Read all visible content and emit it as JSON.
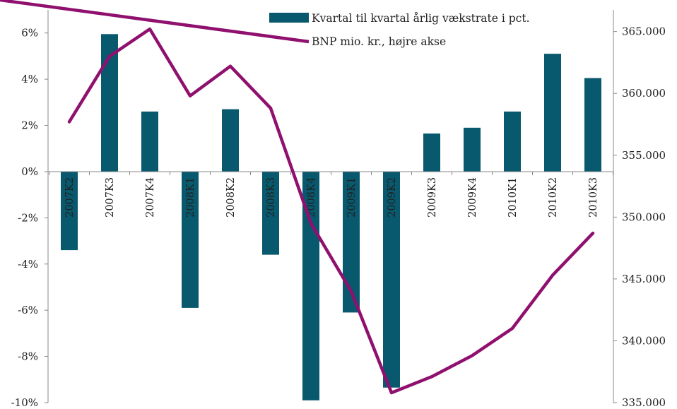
{
  "chart_data": {
    "type": "bar",
    "title": "",
    "categories": [
      "2007K2",
      "2007K3",
      "2007K4",
      "2008K1",
      "2008K2",
      "2008K3",
      "2008K4",
      "2009K1",
      "2009K2",
      "2009K3",
      "2009K4",
      "2010K1",
      "2010K2",
      "2010K3"
    ],
    "series": [
      {
        "name": "Kvartal til kvartal årlig vækstrate i pct.",
        "type": "bar",
        "axis": "left",
        "color": "#08586e",
        "values": [
          -3.4,
          5.95,
          2.6,
          -5.9,
          2.7,
          -3.6,
          -9.9,
          -6.1,
          -9.35,
          1.65,
          1.9,
          2.6,
          5.1,
          4.05
        ]
      },
      {
        "name": "BNP mio. kr., højre akse",
        "type": "line",
        "axis": "right",
        "color": "#8f106e",
        "values": [
          357700,
          363000,
          365200,
          359800,
          362200,
          358800,
          349500,
          344000,
          335800,
          337100,
          338800,
          341000,
          345300,
          348700
        ]
      }
    ],
    "y_left": {
      "min": -10,
      "max": 7,
      "ticks": [
        -10,
        -8,
        -6,
        -4,
        -2,
        0,
        2,
        4,
        6
      ],
      "tick_labels": [
        "-10%",
        "-8%",
        "-6%",
        "-4%",
        "-2%",
        "0%",
        "2%",
        "4%",
        "6%"
      ]
    },
    "y_right": {
      "min": 335000,
      "max": 366750,
      "ticks": [
        335000,
        340000,
        345000,
        350000,
        355000,
        360000,
        365000
      ],
      "tick_labels": [
        "335.000",
        "340.000",
        "345.000",
        "350.000",
        "355.000",
        "360.000",
        "365.000"
      ]
    },
    "legend_position": "top-center",
    "grid": false
  }
}
